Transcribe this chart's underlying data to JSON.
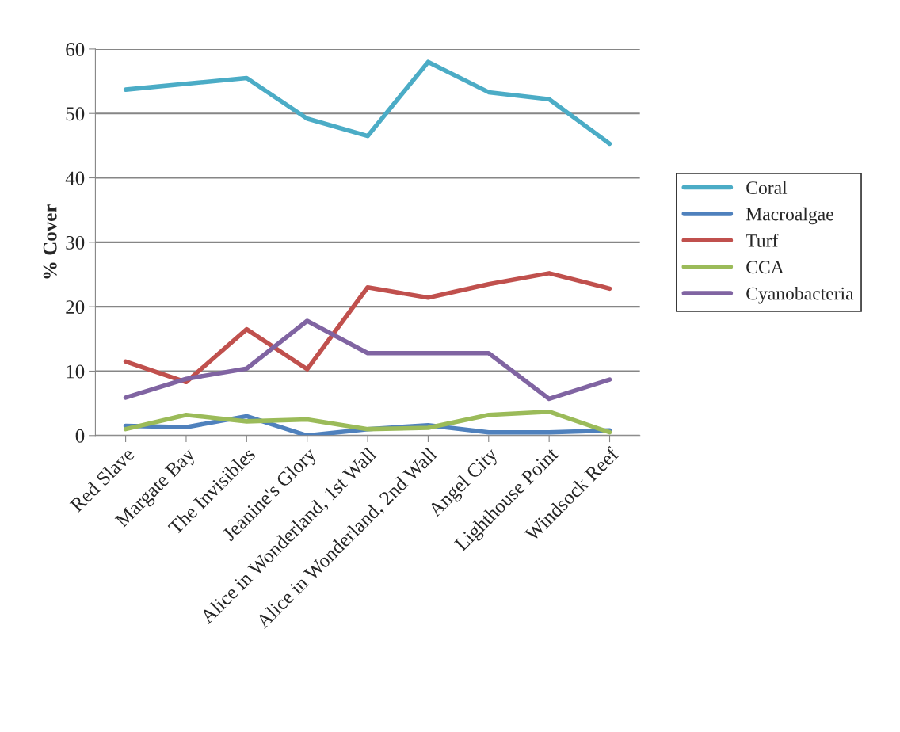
{
  "chart_data": {
    "type": "line",
    "ylabel": "% Cover",
    "categories": [
      "Red Slave",
      "Margate Bay",
      "The Invisibles",
      "Jeanine's Glory",
      "Alice in Wonderland, 1st Wall",
      "Alice in Wonderland, 2nd Wall",
      "Angel City",
      "Lighthouse Point",
      "Windsock Reef"
    ],
    "series": [
      {
        "name": "Coral",
        "color": "#4bacc6",
        "values": [
          53.7,
          54.6,
          55.5,
          49.2,
          46.5,
          58.0,
          53.3,
          52.2,
          45.3
        ]
      },
      {
        "name": "Macroalgae",
        "color": "#4f81bd",
        "values": [
          1.5,
          1.3,
          3.0,
          0.0,
          1.0,
          1.6,
          0.5,
          0.5,
          0.8
        ]
      },
      {
        "name": "Turf",
        "color": "#c0504d",
        "values": [
          11.5,
          8.3,
          16.5,
          10.3,
          23.0,
          21.4,
          23.5,
          25.2,
          22.8
        ]
      },
      {
        "name": "CCA",
        "color": "#9bbb59",
        "values": [
          1.0,
          3.2,
          2.2,
          2.5,
          1.0,
          1.2,
          3.2,
          3.7,
          0.5
        ]
      },
      {
        "name": "Cyanobacteria",
        "color": "#8064a2",
        "values": [
          5.9,
          8.8,
          10.4,
          17.8,
          12.8,
          12.8,
          12.8,
          5.7,
          8.7
        ]
      }
    ],
    "ylim": [
      0,
      60
    ],
    "yticks": [
      0,
      10,
      20,
      30,
      40,
      50,
      60
    ],
    "grid": "y",
    "legend": "right",
    "marker": "none",
    "line_style": "solid"
  }
}
